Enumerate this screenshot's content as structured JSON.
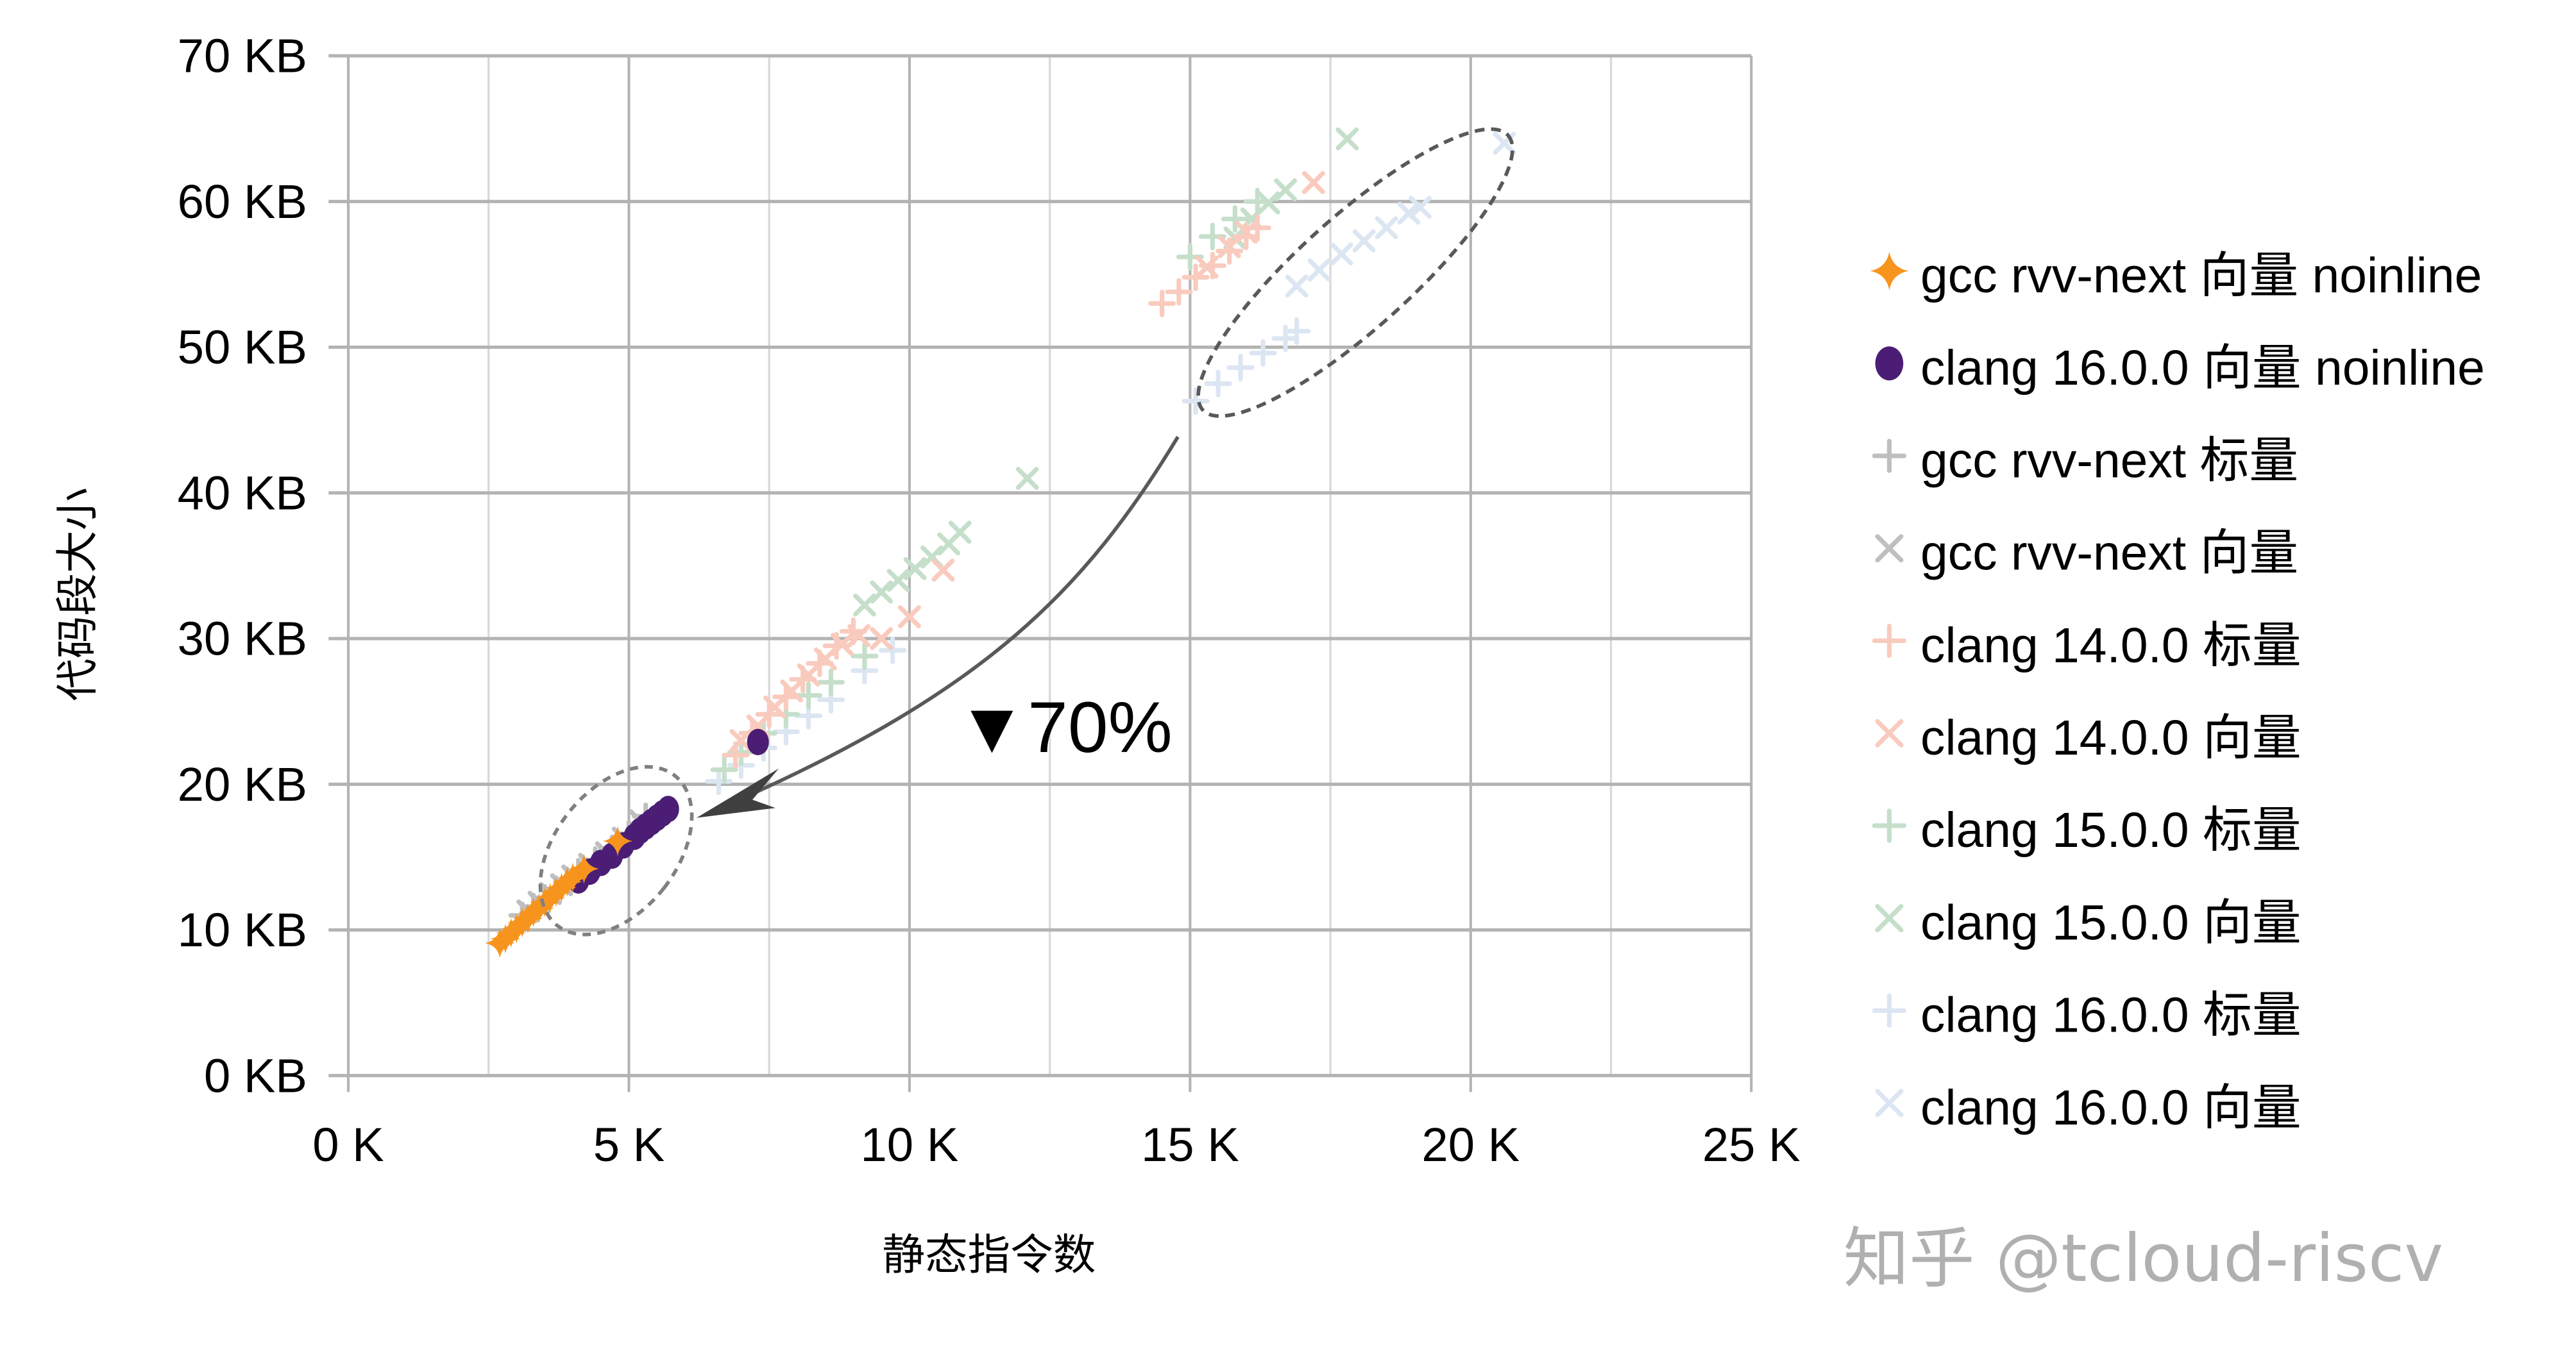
{
  "chart_data": {
    "type": "scatter",
    "title": "",
    "xlabel": "静态指令数",
    "ylabel": "代码段大小",
    "xlim": [
      0,
      25
    ],
    "ylim": [
      0,
      70
    ],
    "x_unit": "K",
    "y_unit": "KB",
    "x_ticks": [
      "0 K",
      "5 K",
      "10 K",
      "15 K",
      "20 K",
      "25 K"
    ],
    "y_ticks": [
      "0 KB",
      "10 KB",
      "20 KB",
      "30 KB",
      "40 KB",
      "50 KB",
      "60 KB",
      "70 KB"
    ],
    "grid": true,
    "legend_position": "right",
    "series": [
      {
        "name": "gcc rvv-next 向量 noinline",
        "marker": "star4",
        "color": "#F7941D",
        "points": [
          [
            2.7,
            9.1
          ],
          [
            2.8,
            9.4
          ],
          [
            2.9,
            9.8
          ],
          [
            3.0,
            10.1
          ],
          [
            3.1,
            10.5
          ],
          [
            3.2,
            10.8
          ],
          [
            3.3,
            11.2
          ],
          [
            3.4,
            11.5
          ],
          [
            3.5,
            11.9
          ],
          [
            3.6,
            12.2
          ],
          [
            3.7,
            12.6
          ],
          [
            3.8,
            12.9
          ],
          [
            3.9,
            13.3
          ],
          [
            4.0,
            13.6
          ],
          [
            4.2,
            14.2
          ],
          [
            4.8,
            16.1
          ]
        ]
      },
      {
        "name": "clang 16.0.0 向量 noinline",
        "marker": "circle",
        "color": "#4B1D75",
        "points": [
          [
            4.1,
            13.4
          ],
          [
            4.3,
            14.0
          ],
          [
            4.5,
            14.6
          ],
          [
            4.7,
            15.1
          ],
          [
            4.9,
            15.8
          ],
          [
            5.1,
            16.4
          ],
          [
            5.2,
            16.8
          ],
          [
            5.3,
            17.1
          ],
          [
            5.4,
            17.4
          ],
          [
            5.5,
            17.7
          ],
          [
            5.6,
            18.0
          ],
          [
            5.7,
            18.3
          ],
          [
            7.3,
            22.9
          ]
        ]
      },
      {
        "name": "gcc rvv-next 标量",
        "marker": "plus",
        "color": "#BFBFBF",
        "points": [
          [
            3.1,
            11.0
          ],
          [
            3.3,
            11.6
          ],
          [
            3.5,
            12.2
          ],
          [
            3.7,
            12.8
          ],
          [
            3.9,
            13.4
          ],
          [
            4.1,
            14.0
          ],
          [
            4.4,
            14.8
          ],
          [
            4.7,
            15.6
          ],
          [
            5.0,
            16.6
          ],
          [
            5.3,
            17.8
          ]
        ]
      },
      {
        "name": "gcc rvv-next 向量",
        "marker": "x",
        "color": "#BFBFBF",
        "points": [
          [
            3.2,
            11.3
          ],
          [
            3.4,
            11.9
          ],
          [
            3.6,
            12.5
          ],
          [
            3.8,
            13.1
          ],
          [
            4.0,
            13.7
          ],
          [
            4.3,
            14.5
          ],
          [
            4.6,
            15.3
          ],
          [
            4.9,
            16.3
          ],
          [
            5.2,
            17.5
          ]
        ]
      },
      {
        "name": "clang 14.0.0 标量",
        "marker": "plus",
        "color": "#F9CBBE",
        "points": [
          [
            6.9,
            22.0
          ],
          [
            7.2,
            23.5
          ],
          [
            7.5,
            24.8
          ],
          [
            7.8,
            26.0
          ],
          [
            8.1,
            27.2
          ],
          [
            8.4,
            28.3
          ],
          [
            8.7,
            29.5
          ],
          [
            9.0,
            30.5
          ],
          [
            14.5,
            53.0
          ],
          [
            14.8,
            53.8
          ],
          [
            15.1,
            54.8
          ],
          [
            15.4,
            55.6
          ],
          [
            15.7,
            56.6
          ],
          [
            16.0,
            57.6
          ],
          [
            16.2,
            58.2
          ]
        ]
      },
      {
        "name": "clang 14.0.0 向量",
        "marker": "x",
        "color": "#F9CBBE",
        "points": [
          [
            7.0,
            23.0
          ],
          [
            7.3,
            24.0
          ],
          [
            7.6,
            25.3
          ],
          [
            7.9,
            26.4
          ],
          [
            8.2,
            27.5
          ],
          [
            8.5,
            28.6
          ],
          [
            8.8,
            29.6
          ],
          [
            9.1,
            30.2
          ],
          [
            9.5,
            30.0
          ],
          [
            10.0,
            31.5
          ],
          [
            10.6,
            34.7
          ],
          [
            15.3,
            55.5
          ],
          [
            15.7,
            56.9
          ],
          [
            16.0,
            57.9
          ],
          [
            17.2,
            61.3
          ]
        ]
      },
      {
        "name": "clang 15.0.0 标量",
        "marker": "plus",
        "color": "#C5DFCA",
        "points": [
          [
            6.7,
            21.0
          ],
          [
            7.0,
            22.2
          ],
          [
            7.4,
            23.5
          ],
          [
            7.8,
            24.8
          ],
          [
            8.2,
            26.1
          ],
          [
            8.6,
            27.0
          ],
          [
            9.2,
            28.8
          ],
          [
            15.0,
            56.2
          ],
          [
            15.4,
            57.6
          ],
          [
            15.8,
            58.8
          ],
          [
            16.2,
            60.0
          ]
        ]
      },
      {
        "name": "clang 15.0.0 向量",
        "marker": "x",
        "color": "#C5DFCA",
        "points": [
          [
            9.2,
            32.3
          ],
          [
            9.5,
            33.2
          ],
          [
            9.8,
            34.0
          ],
          [
            10.1,
            34.8
          ],
          [
            10.4,
            35.6
          ],
          [
            10.7,
            36.5
          ],
          [
            10.9,
            37.3
          ],
          [
            12.1,
            41.0
          ],
          [
            15.8,
            57.5
          ],
          [
            16.1,
            58.8
          ],
          [
            16.4,
            59.9
          ],
          [
            16.7,
            60.8
          ],
          [
            17.8,
            64.3
          ]
        ]
      },
      {
        "name": "clang 16.0.0 标量",
        "marker": "plus",
        "color": "#DCE6F2",
        "points": [
          [
            6.6,
            20.2
          ],
          [
            7.0,
            21.3
          ],
          [
            7.4,
            22.5
          ],
          [
            7.8,
            23.6
          ],
          [
            8.2,
            24.7
          ],
          [
            8.6,
            25.8
          ],
          [
            9.2,
            27.8
          ],
          [
            9.7,
            29.2
          ],
          [
            15.1,
            46.3
          ],
          [
            15.5,
            47.5
          ],
          [
            15.9,
            48.6
          ],
          [
            16.3,
            49.6
          ],
          [
            16.7,
            50.6
          ],
          [
            16.9,
            51.1
          ]
        ]
      },
      {
        "name": "clang 16.0.0 向量",
        "marker": "x",
        "color": "#DCE6F2",
        "points": [
          [
            16.9,
            54.2
          ],
          [
            17.3,
            55.3
          ],
          [
            17.7,
            56.4
          ],
          [
            18.1,
            57.3
          ],
          [
            18.5,
            58.2
          ],
          [
            18.9,
            59.2
          ],
          [
            19.1,
            59.6
          ],
          [
            20.6,
            64.0
          ]
        ]
      }
    ],
    "annotations": [
      {
        "type": "ellipse",
        "around": "clang 16.0.0 scalar/vector cluster",
        "x_range": [
          15.0,
          21.0
        ],
        "y_range": [
          46,
          65
        ]
      },
      {
        "type": "ellipse",
        "around": "noinline cluster",
        "x_range": [
          3.5,
          6.0
        ],
        "y_range": [
          11,
          20
        ]
      },
      {
        "type": "arrow",
        "from": [
          14.8,
          44.5
        ],
        "to": [
          6.2,
          17.5
        ]
      },
      {
        "type": "text",
        "text": "▼70%",
        "x": 11.1,
        "y": 24.3
      }
    ]
  },
  "watermark": "知乎 @tcloud-riscv"
}
